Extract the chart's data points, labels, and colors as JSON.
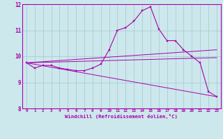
{
  "xlabel": "Windchill (Refroidissement éolien,°C)",
  "bg_color": "#cce8ec",
  "grid_color": "#aaccd4",
  "line_color": "#aa00aa",
  "xlim": [
    -0.5,
    23.5
  ],
  "ylim": [
    8,
    12
  ],
  "yticks": [
    8,
    9,
    10,
    11,
    12
  ],
  "xticks": [
    0,
    1,
    2,
    3,
    4,
    5,
    6,
    7,
    8,
    9,
    10,
    11,
    12,
    13,
    14,
    15,
    16,
    17,
    18,
    19,
    20,
    21,
    22,
    23
  ],
  "series": {
    "main": [
      [
        0,
        9.75
      ],
      [
        1,
        9.55
      ],
      [
        2,
        9.65
      ],
      [
        3,
        9.65
      ],
      [
        4,
        9.55
      ],
      [
        5,
        9.5
      ],
      [
        6,
        9.45
      ],
      [
        7,
        9.45
      ],
      [
        8,
        9.55
      ],
      [
        9,
        9.7
      ],
      [
        10,
        10.25
      ],
      [
        11,
        11.0
      ],
      [
        12,
        11.1
      ],
      [
        13,
        11.35
      ],
      [
        14,
        11.75
      ],
      [
        15,
        11.9
      ],
      [
        16,
        11.05
      ],
      [
        17,
        10.6
      ],
      [
        18,
        10.6
      ],
      [
        19,
        10.25
      ],
      [
        20,
        10.0
      ],
      [
        21,
        9.75
      ],
      [
        22,
        8.65
      ],
      [
        23,
        8.45
      ]
    ],
    "line2": [
      [
        0,
        9.75
      ],
      [
        23,
        10.25
      ]
    ],
    "line3": [
      [
        0,
        9.75
      ],
      [
        23,
        9.95
      ]
    ],
    "line4": [
      [
        0,
        9.75
      ],
      [
        23,
        8.45
      ]
    ]
  }
}
